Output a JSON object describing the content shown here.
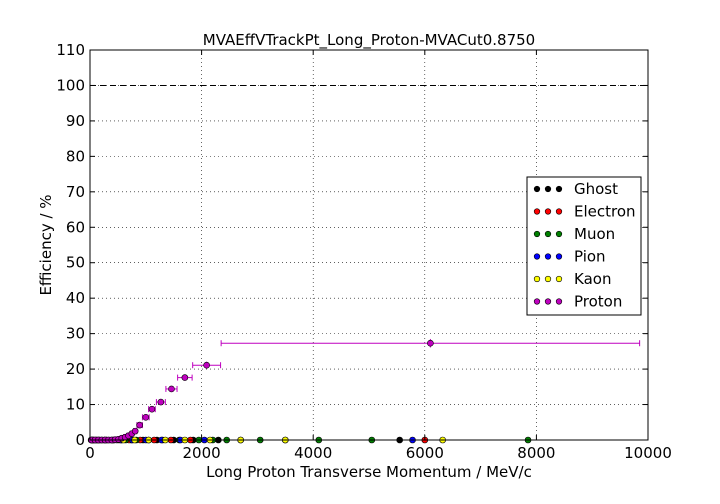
{
  "chart_data": {
    "type": "scatter",
    "title": "MVAEffVTrackPt_Long_Proton-MVACut0.8750",
    "xlabel": "Long Proton Transverse Momentum / MeV/c",
    "ylabel": "Efficiency / %",
    "xlim": [
      0,
      10000
    ],
    "ylim": [
      0,
      110
    ],
    "xticks": [
      0,
      2000,
      4000,
      6000,
      8000,
      10000
    ],
    "yticks": [
      0,
      10,
      20,
      30,
      40,
      50,
      60,
      70,
      80,
      90,
      100,
      110
    ],
    "grid": true,
    "reference_line_y": 100,
    "legend_position": "right",
    "series": [
      {
        "name": "Ghost",
        "color": "#000000",
        "points": [
          [
            20,
            0
          ],
          [
            60,
            0
          ],
          [
            120,
            0
          ],
          [
            200,
            0
          ],
          [
            300,
            0
          ],
          [
            420,
            0
          ],
          [
            560,
            0
          ],
          [
            740,
            0
          ],
          [
            950,
            0
          ],
          [
            1200,
            0
          ],
          [
            1500,
            0
          ],
          [
            1850,
            0
          ],
          [
            2300,
            0
          ],
          [
            5550,
            0
          ]
        ]
      },
      {
        "name": "Electron",
        "color": "#ff0000",
        "points": [
          [
            30,
            0
          ],
          [
            90,
            0
          ],
          [
            170,
            0
          ],
          [
            260,
            0
          ],
          [
            380,
            0
          ],
          [
            520,
            0
          ],
          [
            700,
            0
          ],
          [
            900,
            0
          ],
          [
            1150,
            0
          ],
          [
            1450,
            0
          ],
          [
            1800,
            0
          ],
          [
            6000,
            0
          ]
        ]
      },
      {
        "name": "Muon",
        "color": "#008000",
        "points": [
          [
            40,
            0
          ],
          [
            110,
            0
          ],
          [
            220,
            0
          ],
          [
            340,
            0
          ],
          [
            480,
            0
          ],
          [
            640,
            0
          ],
          [
            830,
            0
          ],
          [
            1050,
            0
          ],
          [
            1300,
            0
          ],
          [
            1600,
            0
          ],
          [
            1950,
            0
          ],
          [
            2200,
            0
          ],
          [
            2450,
            0
          ],
          [
            2700,
            0
          ],
          [
            3050,
            0
          ],
          [
            3500,
            0
          ],
          [
            4100,
            0
          ],
          [
            5050,
            0
          ],
          [
            7850,
            0
          ]
        ]
      },
      {
        "name": "Pion",
        "color": "#0000ff",
        "points": [
          [
            50,
            0
          ],
          [
            140,
            0
          ],
          [
            260,
            0
          ],
          [
            400,
            0
          ],
          [
            560,
            0
          ],
          [
            760,
            0
          ],
          [
            1000,
            0
          ],
          [
            1280,
            0
          ],
          [
            1620,
            0
          ],
          [
            2050,
            0
          ],
          [
            5780,
            0
          ]
        ]
      },
      {
        "name": "Kaon",
        "color": "#ffff00",
        "points": [
          [
            60,
            0
          ],
          [
            160,
            0
          ],
          [
            290,
            0
          ],
          [
            430,
            0
          ],
          [
            600,
            0
          ],
          [
            800,
            0
          ],
          [
            1050,
            0
          ],
          [
            1350,
            0
          ],
          [
            1700,
            0
          ],
          [
            2150,
            0
          ],
          [
            2700,
            0
          ],
          [
            3500,
            0
          ],
          [
            6320,
            0
          ]
        ]
      },
      {
        "name": "Proton",
        "color": "#bf00bf",
        "points": [
          {
            "x": 30,
            "y": 0,
            "xerr": 30,
            "yerr": 0
          },
          {
            "x": 90,
            "y": 0,
            "xerr": 30,
            "yerr": 0
          },
          {
            "x": 150,
            "y": 0,
            "xerr": 30,
            "yerr": 0
          },
          {
            "x": 210,
            "y": 0,
            "xerr": 30,
            "yerr": 0
          },
          {
            "x": 270,
            "y": 0,
            "xerr": 30,
            "yerr": 0
          },
          {
            "x": 330,
            "y": 0,
            "xerr": 30,
            "yerr": 0
          },
          {
            "x": 390,
            "y": 0,
            "xerr": 30,
            "yerr": 0
          },
          {
            "x": 450,
            "y": 0.1,
            "xerr": 30,
            "yerr": 0.1
          },
          {
            "x": 510,
            "y": 0.2,
            "xerr": 30,
            "yerr": 0.1
          },
          {
            "x": 570,
            "y": 0.5,
            "xerr": 30,
            "yerr": 0.2
          },
          {
            "x": 630,
            "y": 0.8,
            "xerr": 30,
            "yerr": 0.2
          },
          {
            "x": 690,
            "y": 1.2,
            "xerr": 30,
            "yerr": 0.3
          },
          {
            "x": 750,
            "y": 1.8,
            "xerr": 30,
            "yerr": 0.3
          },
          {
            "x": 810,
            "y": 2.5,
            "xerr": 30,
            "yerr": 0.4
          },
          {
            "x": 890,
            "y": 4.2,
            "xerr": 50,
            "yerr": 0.4
          },
          {
            "x": 1000,
            "y": 6.4,
            "xerr": 60,
            "yerr": 0.5
          },
          {
            "x": 1110,
            "y": 8.7,
            "xerr": 60,
            "yerr": 0.5
          },
          {
            "x": 1270,
            "y": 10.7,
            "xerr": 80,
            "yerr": 0.6
          },
          {
            "x": 1460,
            "y": 14.4,
            "xerr": 100,
            "yerr": 0.7
          },
          {
            "x": 1700,
            "y": 17.6,
            "xerr": 130,
            "yerr": 0.8
          },
          {
            "x": 2090,
            "y": 21.1,
            "xerr": 250,
            "yerr": 1.0
          },
          {
            "x": 6100,
            "y": 27.3,
            "xerr": 3750,
            "yerr": 1.2
          }
        ]
      }
    ]
  }
}
